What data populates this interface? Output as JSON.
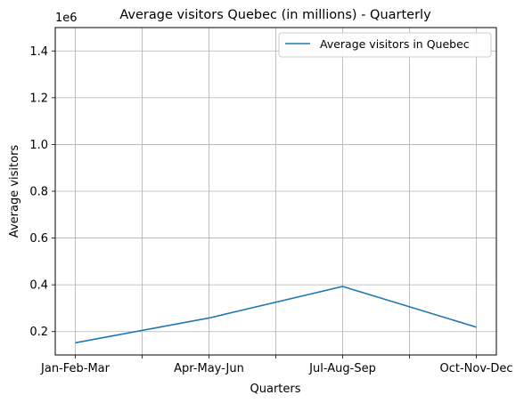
{
  "chart_data": {
    "type": "line",
    "title": "Average visitors Quebec (in millions) - Quarterly",
    "xlabel": "Quarters",
    "ylabel": "Average visitors",
    "y_offset_label": "1e6",
    "categories": [
      "Jan-Feb-Mar",
      "Apr-May-Jun",
      "Jul-Aug-Sep",
      "Oct-Nov-Dec"
    ],
    "series": [
      {
        "name": "Average visitors in Quebec",
        "color": "#1f77b4",
        "values": [
          0.152,
          0.258,
          0.393,
          0.219
        ]
      }
    ],
    "ylim": [
      0.1,
      1.5
    ],
    "yticks": [
      0.2,
      0.4,
      0.6,
      0.8,
      1.0,
      1.2,
      1.4
    ],
    "ytick_labels": [
      "0.2",
      "0.4",
      "0.6",
      "0.8",
      "1.0",
      "1.2",
      "1.4"
    ],
    "xlim": [
      -0.15,
      3.15
    ],
    "minor_xticks": [
      0.5,
      1.5,
      2.5
    ],
    "grid": true,
    "legend_position": "upper right"
  }
}
